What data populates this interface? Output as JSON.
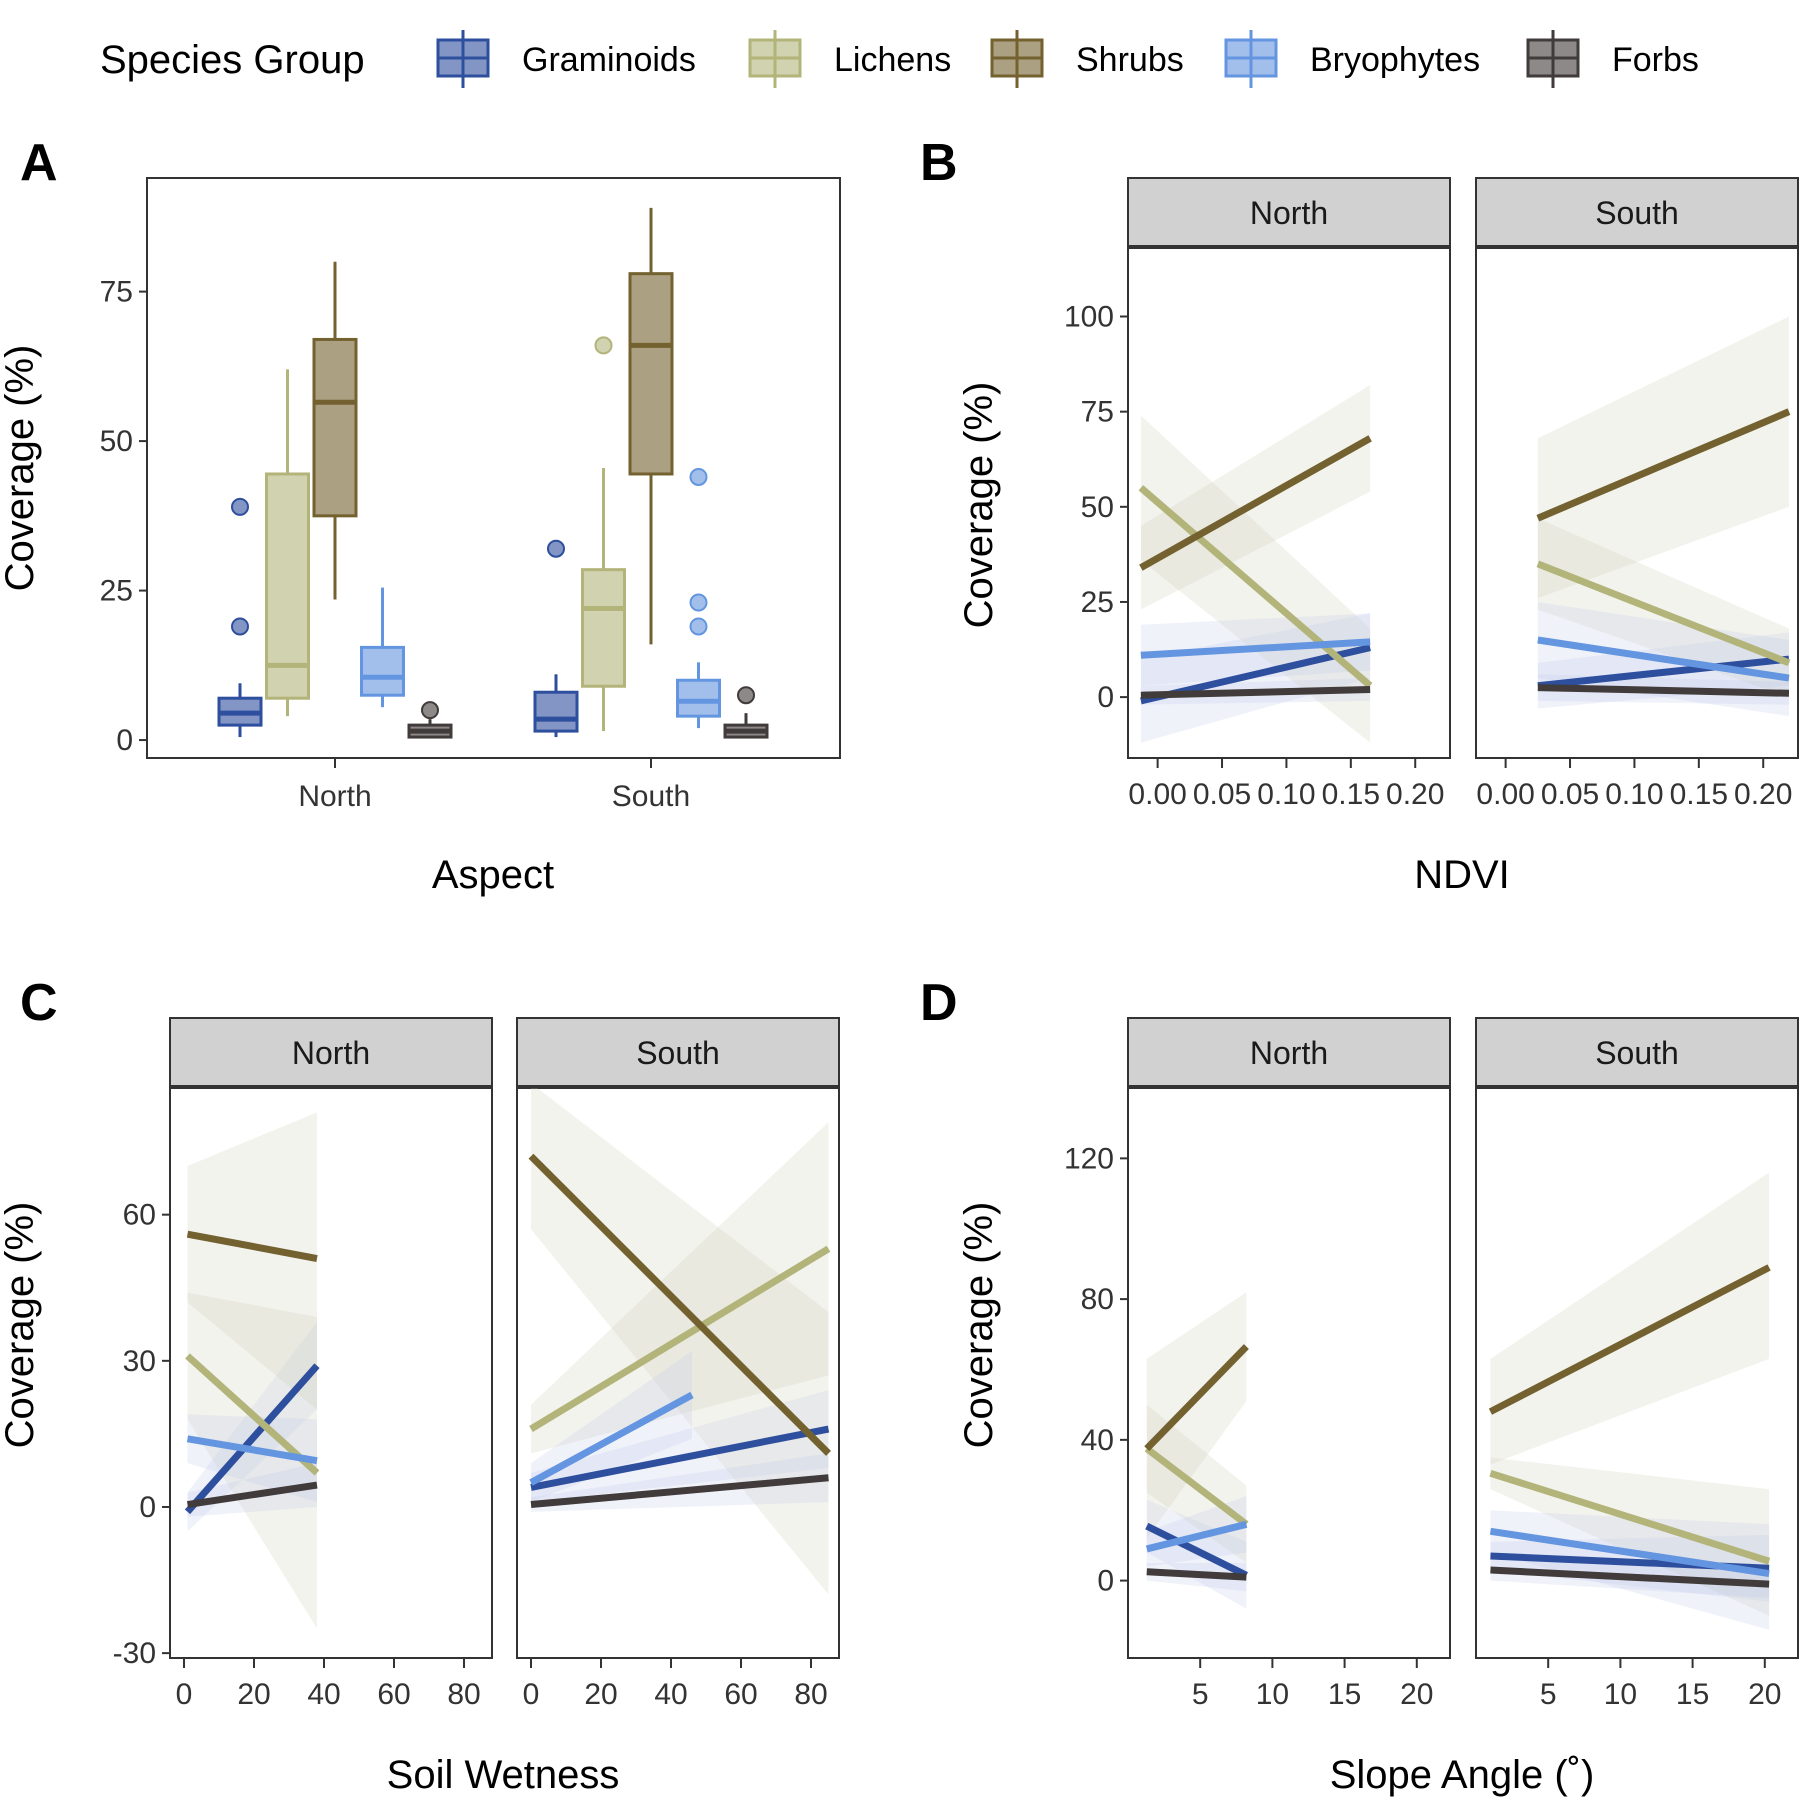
{
  "legend": {
    "title": "Species Group",
    "items": [
      {
        "name": "Graminoids",
        "color": "#2e4f9e"
      },
      {
        "name": "Lichens",
        "color": "#b2b47a"
      },
      {
        "name": "Shrubs",
        "color": "#73612f"
      },
      {
        "name": "Bryophytes",
        "color": "#6495e0"
      },
      {
        "name": "Forbs",
        "color": "#413b3b"
      }
    ]
  },
  "chart_data": [
    {
      "panel": "A",
      "type": "box",
      "xlabel": "Aspect",
      "ylabel": "Coverage (%)",
      "ylim": [
        -3,
        94
      ],
      "yticks": [
        0,
        25,
        50,
        75
      ],
      "categories": [
        "North",
        "South"
      ],
      "boxes": [
        {
          "category": "North",
          "group": "Graminoids",
          "whisker_low": 0.5,
          "q1": 2.5,
          "median": 4.5,
          "q3": 7,
          "whisker_high": 9.5,
          "outliers": [
            19,
            39
          ]
        },
        {
          "category": "North",
          "group": "Lichens",
          "whisker_low": 4,
          "q1": 7,
          "median": 12.5,
          "q3": 44.5,
          "whisker_high": 62,
          "outliers": []
        },
        {
          "category": "North",
          "group": "Shrubs",
          "whisker_low": 23.5,
          "q1": 37.5,
          "median": 56.5,
          "q3": 67,
          "whisker_high": 80,
          "outliers": []
        },
        {
          "category": "North",
          "group": "Bryophytes",
          "whisker_low": 5.5,
          "q1": 7.5,
          "median": 10.5,
          "q3": 15.5,
          "whisker_high": 25.5,
          "outliers": []
        },
        {
          "category": "North",
          "group": "Forbs",
          "whisker_low": 0.5,
          "q1": 0.5,
          "median": 1.5,
          "q3": 2.5,
          "whisker_high": 3.5,
          "outliers": [
            5
          ]
        },
        {
          "category": "South",
          "group": "Graminoids",
          "whisker_low": 0.5,
          "q1": 1.5,
          "median": 3.5,
          "q3": 8,
          "whisker_high": 11,
          "outliers": [
            32
          ]
        },
        {
          "category": "South",
          "group": "Lichens",
          "whisker_low": 1.5,
          "q1": 9,
          "median": 22,
          "q3": 28.5,
          "whisker_high": 45.5,
          "outliers": [
            66
          ]
        },
        {
          "category": "South",
          "group": "Shrubs",
          "whisker_low": 16,
          "q1": 44.5,
          "median": 66,
          "q3": 78,
          "whisker_high": 89,
          "outliers": []
        },
        {
          "category": "South",
          "group": "Bryophytes",
          "whisker_low": 2,
          "q1": 4,
          "median": 6.5,
          "q3": 10,
          "whisker_high": 13,
          "outliers": [
            19,
            23,
            44
          ]
        },
        {
          "category": "South",
          "group": "Forbs",
          "whisker_low": 0.5,
          "q1": 0.5,
          "median": 1.5,
          "q3": 2.5,
          "whisker_high": 4.5,
          "outliers": [
            7.5
          ]
        }
      ]
    },
    {
      "panel": "B",
      "type": "line",
      "xlabel": "NDVI",
      "ylabel": "Coverage (%)",
      "xlim": [
        -0.023,
        0.227
      ],
      "ylim": [
        -16,
        118
      ],
      "xticks": [
        0.0,
        0.05,
        0.1,
        0.15,
        0.2
      ],
      "xtick_labels": [
        "0.00",
        "0.05",
        "0.10",
        "0.15",
        "0.20"
      ],
      "yticks": [
        0,
        25,
        50,
        75,
        100
      ],
      "facets": [
        {
          "label": "North",
          "series": [
            {
              "name": "Graminoids",
              "x": [
                -0.013,
                0.165
              ],
              "y": [
                -1,
                13
              ],
              "ci": [
                [
                  -12,
                  10
                ],
                [
                  5,
                  22
                ]
              ]
            },
            {
              "name": "Lichens",
              "x": [
                -0.013,
                0.165
              ],
              "y": [
                55,
                3
              ],
              "ci": [
                [
                  36,
                  74
                ],
                [
                  -12,
                  18
                ]
              ]
            },
            {
              "name": "Shrubs",
              "x": [
                -0.013,
                0.165
              ],
              "y": [
                34,
                68
              ],
              "ci": [
                [
                  23,
                  45
                ],
                [
                  54,
                  82
                ]
              ]
            },
            {
              "name": "Bryophytes",
              "x": [
                -0.013,
                0.165
              ],
              "y": [
                11,
                14.5
              ],
              "ci": [
                [
                  3,
                  19
                ],
                [
                  7,
                  22
                ]
              ]
            },
            {
              "name": "Forbs",
              "x": [
                -0.013,
                0.165
              ],
              "y": [
                0.5,
                2
              ],
              "ci": [
                [
                  -2,
                  3
                ],
                [
                  -1,
                  5
                ]
              ]
            }
          ]
        },
        {
          "label": "South",
          "series": [
            {
              "name": "Graminoids",
              "x": [
                0.025,
                0.22
              ],
              "y": [
                3,
                10
              ],
              "ci": [
                [
                  -3,
                  9
                ],
                [
                  3,
                  17
                ]
              ]
            },
            {
              "name": "Lichens",
              "x": [
                0.025,
                0.22
              ],
              "y": [
                35,
                9
              ],
              "ci": [
                [
                  23,
                  47
                ],
                [
                  0,
                  18
                ]
              ]
            },
            {
              "name": "Shrubs",
              "x": [
                0.025,
                0.22
              ],
              "y": [
                47,
                75
              ],
              "ci": [
                [
                  26,
                  68
                ],
                [
                  50,
                  100
                ]
              ]
            },
            {
              "name": "Bryophytes",
              "x": [
                0.025,
                0.22
              ],
              "y": [
                15,
                5
              ],
              "ci": [
                [
                  5,
                  25
                ],
                [
                  -5,
                  15
                ]
              ]
            },
            {
              "name": "Forbs",
              "x": [
                0.025,
                0.22
              ],
              "y": [
                2.5,
                1
              ],
              "ci": [
                [
                  -1,
                  6
                ],
                [
                  -2,
                  4
                ]
              ]
            }
          ]
        }
      ]
    },
    {
      "panel": "C",
      "type": "line",
      "xlabel": "Soil Wetness",
      "ylabel": "Coverage (%)",
      "xlim": [
        -4,
        88
      ],
      "ylim": [
        -31,
        86
      ],
      "xticks": [
        0,
        20,
        40,
        60,
        80
      ],
      "yticks": [
        -30,
        0,
        30,
        60
      ],
      "facets": [
        {
          "label": "North",
          "series": [
            {
              "name": "Graminoids",
              "x": [
                1,
                38
              ],
              "y": [
                -1,
                29
              ],
              "ci": [
                [
                  -5,
                  3
                ],
                [
                  20,
                  38
                ]
              ]
            },
            {
              "name": "Lichens",
              "x": [
                1,
                38
              ],
              "y": [
                31,
                7
              ],
              "ci": [
                [
                  18,
                  44
                ],
                [
                  -25,
                  39
                ]
              ]
            },
            {
              "name": "Shrubs",
              "x": [
                1,
                38
              ],
              "y": [
                56,
                51
              ],
              "ci": [
                [
                  42,
                  70
                ],
                [
                  20,
                  81
                ]
              ]
            },
            {
              "name": "Bryophytes",
              "x": [
                1,
                38
              ],
              "y": [
                14,
                9.5
              ],
              "ci": [
                [
                  9,
                  19
                ],
                [
                  1,
                  18
                ]
              ]
            },
            {
              "name": "Forbs",
              "x": [
                1,
                38
              ],
              "y": [
                0.5,
                4.5
              ],
              "ci": [
                [
                  -2,
                  3
                ],
                [
                  0,
                  9
                ]
              ]
            }
          ]
        },
        {
          "label": "South",
          "series": [
            {
              "name": "Graminoids",
              "x": [
                0,
                85
              ],
              "y": [
                4,
                16
              ],
              "ci": [
                [
                  1,
                  7
                ],
                [
                  8,
                  24
                ]
              ]
            },
            {
              "name": "Lichens",
              "x": [
                0,
                85
              ],
              "y": [
                16,
                53
              ],
              "ci": [
                [
                  11,
                  21
                ],
                [
                  27,
                  79
                ]
              ]
            },
            {
              "name": "Shrubs",
              "x": [
                0,
                85
              ],
              "y": [
                72,
                11
              ],
              "ci": [
                [
                  57,
                  87
                ],
                [
                  -18,
                  40
                ]
              ]
            },
            {
              "name": "Bryophytes",
              "x": [
                0,
                46
              ],
              "y": [
                5,
                23
              ],
              "ci": [
                [
                  1,
                  9
                ],
                [
                  14,
                  32
                ]
              ]
            },
            {
              "name": "Forbs",
              "x": [
                0,
                85
              ],
              "y": [
                0.5,
                6
              ],
              "ci": [
                [
                  -1,
                  2
                ],
                [
                  1,
                  11
                ]
              ]
            }
          ]
        }
      ]
    },
    {
      "panel": "D",
      "type": "line",
      "xlabel": "Slope Angle (˚)",
      "ylabel": "Coverage (%)",
      "xlim": [
        0,
        22.3
      ],
      "ylim": [
        -22,
        140
      ],
      "xticks": [
        5,
        10,
        15,
        20
      ],
      "yticks": [
        0,
        40,
        80,
        120
      ],
      "facets": [
        {
          "label": "North",
          "series": [
            {
              "name": "Graminoids",
              "x": [
                1.3,
                8.2
              ],
              "y": [
                15.5,
                1.5
              ],
              "ci": [
                [
                  8,
                  23
                ],
                [
                  -8,
                  11
                ]
              ]
            },
            {
              "name": "Lichens",
              "x": [
                1.3,
                8.2
              ],
              "y": [
                37.5,
                16
              ],
              "ci": [
                [
                  25,
                  50
                ],
                [
                  5,
                  27
                ]
              ]
            },
            {
              "name": "Shrubs",
              "x": [
                1.3,
                8.2
              ],
              "y": [
                37.5,
                66.5
              ],
              "ci": [
                [
                  12,
                  63
                ],
                [
                  51,
                  82
                ]
              ]
            },
            {
              "name": "Bryophytes",
              "x": [
                1.3,
                8.2
              ],
              "y": [
                9,
                16
              ],
              "ci": [
                [
                  4,
                  14
                ],
                [
                  8,
                  24
                ]
              ]
            },
            {
              "name": "Forbs",
              "x": [
                1.3,
                8.2
              ],
              "y": [
                2.5,
                1
              ],
              "ci": [
                [
                  0,
                  5
                ],
                [
                  -3,
                  5
                ]
              ]
            }
          ]
        },
        {
          "label": "South",
          "series": [
            {
              "name": "Graminoids",
              "x": [
                1,
                20.3
              ],
              "y": [
                7,
                3.5
              ],
              "ci": [
                [
                  3,
                  11
                ],
                [
                  -6,
                  13
                ]
              ]
            },
            {
              "name": "Lichens",
              "x": [
                1,
                20.3
              ],
              "y": [
                30.5,
                5.5
              ],
              "ci": [
                [
                  26,
                  35
                ],
                [
                  -10,
                  26
                ]
              ]
            },
            {
              "name": "Shrubs",
              "x": [
                1,
                20.3
              ],
              "y": [
                48,
                89
              ],
              "ci": [
                [
                  33,
                  63
                ],
                [
                  63,
                  116
                ]
              ]
            },
            {
              "name": "Bryophytes",
              "x": [
                1,
                20.3
              ],
              "y": [
                14,
                2
              ],
              "ci": [
                [
                  8,
                  20
                ],
                [
                  -14,
                  16
                ]
              ]
            },
            {
              "name": "Forbs",
              "x": [
                1,
                20.3
              ],
              "y": [
                3,
                -1
              ],
              "ci": [
                [
                  0,
                  6
                ],
                [
                  -5,
                  3
                ]
              ]
            }
          ]
        }
      ]
    }
  ]
}
